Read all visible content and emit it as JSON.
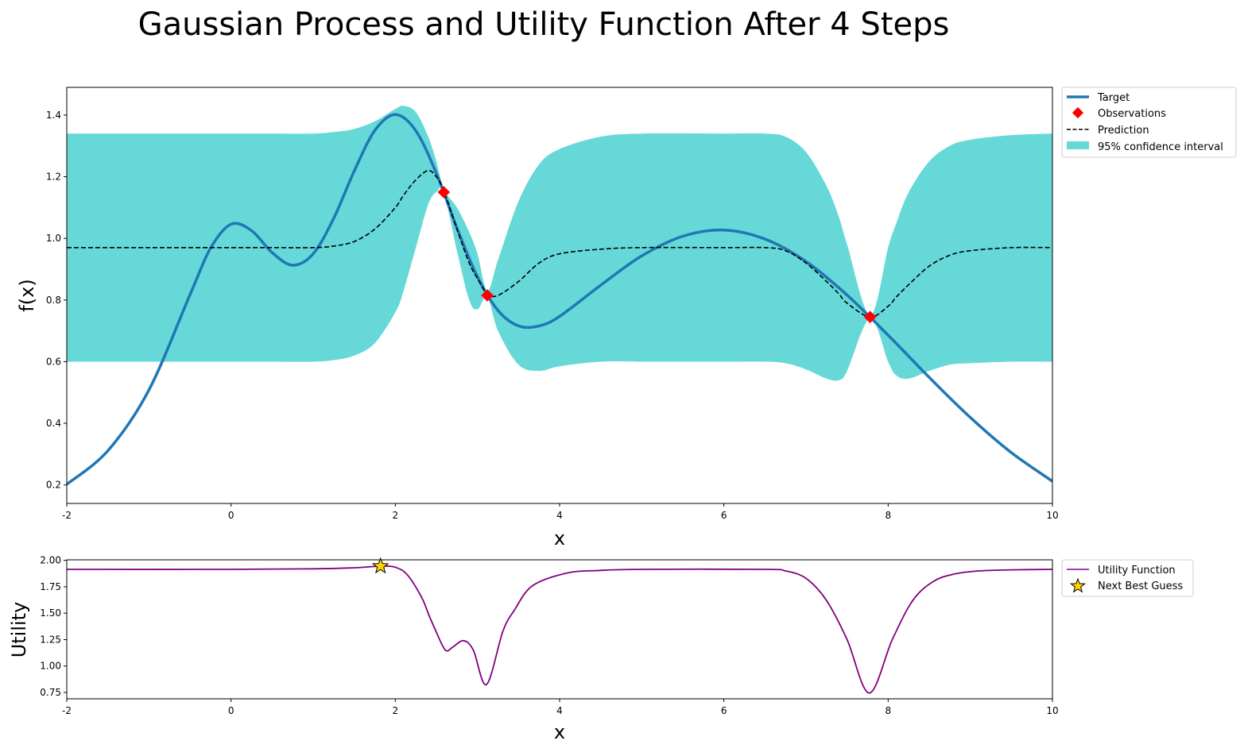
{
  "title": "Gaussian Process and Utility Function After 4 Steps",
  "colors": {
    "target": "#1f77b4",
    "observations": "#ff0000",
    "prediction": "#000000",
    "confidence": "#66d8d8",
    "utility": "#800080",
    "next_guess": "#ffd700"
  },
  "chart_data": [
    {
      "type": "line",
      "xlabel": "x",
      "ylabel": "f(x)",
      "xlim": [
        -2,
        10
      ],
      "ylim": [
        0.14,
        1.49
      ],
      "xticks": [
        -2,
        0,
        2,
        4,
        6,
        8,
        10
      ],
      "yticks": [
        0.2,
        0.4,
        0.6,
        0.8,
        1.0,
        1.2,
        1.4
      ],
      "ytick_labels": [
        "0.2",
        "0.4",
        "0.6",
        "0.8",
        "1.0",
        "1.2",
        "1.4"
      ],
      "grid": false,
      "legend_placement": "outside-top-right",
      "legend": [
        "Target",
        "Observations",
        "Prediction",
        "95% confidence interval"
      ],
      "target": {
        "x": [
          -2,
          -1.5,
          -1,
          -0.5,
          -0.25,
          0,
          0.25,
          0.5,
          0.75,
          1,
          1.25,
          1.5,
          1.75,
          2,
          2.25,
          2.5,
          2.75,
          3,
          3.25,
          3.5,
          3.75,
          4,
          4.5,
          5,
          5.5,
          6,
          6.5,
          7,
          7.5,
          8,
          8.5,
          9,
          9.5,
          10
        ],
        "y": [
          0.202,
          0.311,
          0.508,
          0.817,
          0.968,
          1.046,
          1.025,
          0.954,
          0.913,
          0.95,
          1.065,
          1.219,
          1.35,
          1.402,
          1.349,
          1.211,
          1.034,
          0.875,
          0.766,
          0.716,
          0.716,
          0.747,
          0.848,
          0.943,
          1.007,
          1.027,
          0.998,
          0.925,
          0.816,
          0.686,
          0.549,
          0.419,
          0.305,
          0.212
        ]
      },
      "observations": {
        "x": [
          2.59,
          3.12,
          7.78
        ],
        "y": [
          1.15,
          0.815,
          0.745
        ]
      },
      "gp_x": [
        -2,
        -1,
        0,
        0.5,
        1,
        1.25,
        1.5,
        1.75,
        2,
        2.1,
        2.25,
        2.4,
        2.5,
        2.59,
        2.75,
        2.9,
        3,
        3.12,
        3.25,
        3.5,
        3.75,
        4,
        4.5,
        5,
        6,
        6.5,
        6.75,
        7,
        7.25,
        7.4,
        7.5,
        7.78,
        8,
        8.1,
        8.25,
        8.5,
        8.75,
        9,
        9.5,
        10
      ],
      "prediction": [
        0.97,
        0.97,
        0.97,
        0.97,
        0.97,
        0.975,
        0.99,
        1.03,
        1.1,
        1.14,
        1.19,
        1.22,
        1.2,
        1.155,
        1.03,
        0.92,
        0.87,
        0.82,
        0.815,
        0.86,
        0.92,
        0.95,
        0.965,
        0.97,
        0.97,
        0.97,
        0.96,
        0.92,
        0.86,
        0.82,
        0.79,
        0.745,
        0.78,
        0.81,
        0.85,
        0.91,
        0.945,
        0.96,
        0.97,
        0.97
      ],
      "ci_upper": [
        1.34,
        1.34,
        1.34,
        1.34,
        1.34,
        1.345,
        1.355,
        1.38,
        1.42,
        1.43,
        1.41,
        1.33,
        1.25,
        1.16,
        1.1,
        1.02,
        0.95,
        0.83,
        0.93,
        1.12,
        1.24,
        1.29,
        1.33,
        1.34,
        1.34,
        1.34,
        1.33,
        1.28,
        1.17,
        1.07,
        0.98,
        0.75,
        0.97,
        1.05,
        1.15,
        1.25,
        1.3,
        1.32,
        1.335,
        1.34
      ],
      "ci_lower": [
        0.6,
        0.6,
        0.6,
        0.6,
        0.6,
        0.605,
        0.62,
        0.66,
        0.76,
        0.83,
        0.97,
        1.11,
        1.15,
        1.15,
        0.96,
        0.8,
        0.77,
        0.81,
        0.7,
        0.59,
        0.57,
        0.585,
        0.6,
        0.6,
        0.6,
        0.6,
        0.595,
        0.575,
        0.545,
        0.54,
        0.57,
        0.74,
        0.6,
        0.555,
        0.545,
        0.57,
        0.59,
        0.595,
        0.6,
        0.6
      ]
    },
    {
      "type": "line",
      "xlabel": "x",
      "ylabel": "Utility",
      "xlim": [
        -2,
        10
      ],
      "ylim": [
        0.69,
        2.005
      ],
      "xticks": [
        -2,
        0,
        2,
        4,
        6,
        8,
        10
      ],
      "yticks": [
        0.75,
        1.0,
        1.25,
        1.5,
        1.75,
        2.0
      ],
      "ytick_labels": [
        "0.75",
        "1.00",
        "1.25",
        "1.50",
        "1.75",
        "2.00"
      ],
      "grid": false,
      "legend_placement": "outside-top-right",
      "legend": [
        "Utility Function",
        "Next Best Guess"
      ],
      "utility": {
        "x": [
          -2,
          0,
          1,
          1.5,
          1.82,
          2,
          2.15,
          2.32,
          2.41,
          2.5,
          2.61,
          2.7,
          2.83,
          2.95,
          3.11,
          3.31,
          3.45,
          3.67,
          4.09,
          4.5,
          5,
          6.5,
          6.75,
          7,
          7.25,
          7.5,
          7.77,
          8.05,
          8.3,
          8.55,
          8.8,
          9.1,
          9.5,
          10
        ],
        "y": [
          1.915,
          1.915,
          1.92,
          1.93,
          1.945,
          1.935,
          1.86,
          1.65,
          1.48,
          1.32,
          1.15,
          1.18,
          1.24,
          1.15,
          0.825,
          1.33,
          1.53,
          1.76,
          1.88,
          1.905,
          1.915,
          1.915,
          1.9,
          1.83,
          1.62,
          1.25,
          0.745,
          1.25,
          1.62,
          1.8,
          1.87,
          1.9,
          1.91,
          1.915
        ]
      },
      "next_best_guess": {
        "x": 1.82,
        "y": 1.945
      }
    }
  ]
}
